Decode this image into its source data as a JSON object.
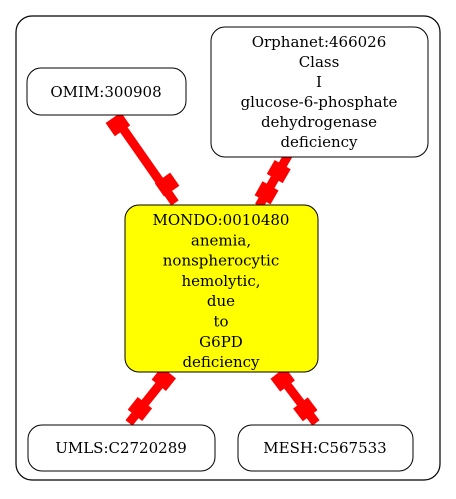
{
  "colors": {
    "edge": "#ff0000",
    "center_fill": "#ffff00",
    "node_fill": "#ffffff",
    "stroke": "#000000"
  },
  "nodes": {
    "center": {
      "lines": [
        "MONDO:0010480",
        "anemia,",
        "nonspherocytic",
        "hemolytic,",
        "due",
        "to",
        "G6PD",
        "deficiency"
      ]
    },
    "omim": {
      "lines": [
        "OMIM:300908"
      ]
    },
    "orphanet": {
      "lines": [
        "Orphanet:466026",
        "Class",
        "I",
        "glucose-6-phosphate",
        "dehydrogenase",
        "deficiency"
      ]
    },
    "umls": {
      "lines": [
        "UMLS:C2720289"
      ]
    },
    "mesh": {
      "lines": [
        "MESH:C567533"
      ]
    }
  }
}
